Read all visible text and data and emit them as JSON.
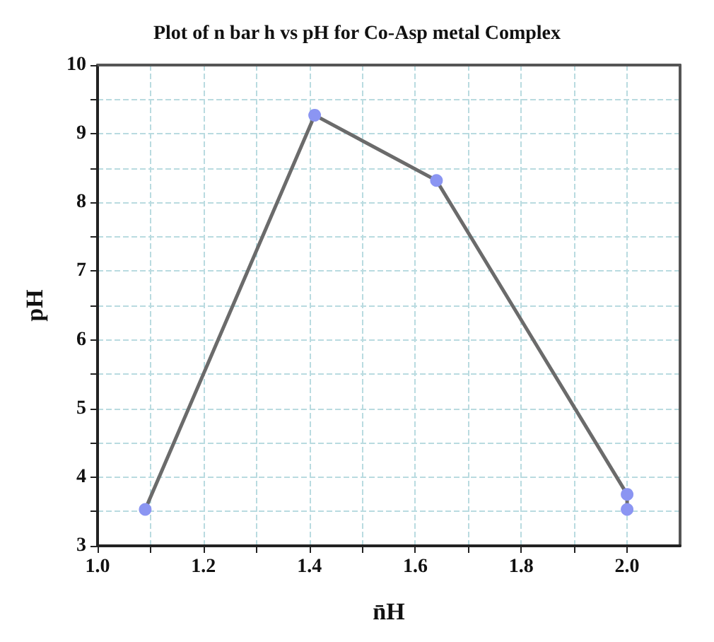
{
  "chart_data": {
    "type": "line",
    "title": "Plot of n bar h vs pH for Co-Asp metal Complex",
    "xlabel": "n̄H",
    "ylabel": "pH",
    "x": [
      1.09,
      1.41,
      1.64,
      2.0,
      2.0
    ],
    "series": [
      {
        "color": "#6b6b6b",
        "colors": [
          "#8b95f2",
          "#8b95f2",
          "#8b95f2",
          "#8b95f2",
          "#8b95f2"
        ],
        "values": [
          3.53,
          9.27,
          8.32,
          3.75,
          3.53
        ]
      }
    ],
    "xlim": [
      1.0,
      2.1
    ],
    "xticks": [
      {
        "value": 1.0,
        "label": "1.0"
      },
      {
        "value": 1.1,
        "label": null
      },
      {
        "value": 1.2,
        "label": "1.2"
      },
      {
        "value": 1.3,
        "label": null
      },
      {
        "value": 1.4,
        "label": "1.4"
      },
      {
        "value": 1.5,
        "label": null
      },
      {
        "value": 1.6,
        "label": "1.6"
      },
      {
        "value": 1.7,
        "label": null
      },
      {
        "value": 1.8,
        "label": "1.8"
      },
      {
        "value": 1.9,
        "label": null
      },
      {
        "value": 2.0,
        "label": "2.0"
      }
    ],
    "ylim": [
      3,
      10
    ],
    "yticks": [
      3,
      {
        "value": 3.5,
        "label": null
      },
      4,
      {
        "value": 4.5,
        "label": null
      },
      5,
      {
        "value": 5.5,
        "label": null
      },
      6,
      {
        "value": 6.5,
        "label": null
      },
      7,
      {
        "value": 7.5,
        "label": null
      },
      8,
      {
        "value": 8.5,
        "label": null
      },
      9,
      {
        "value": 9.5,
        "label": null
      },
      10
    ],
    "grid": true,
    "marker": "circle",
    "line_style": "solid"
  }
}
